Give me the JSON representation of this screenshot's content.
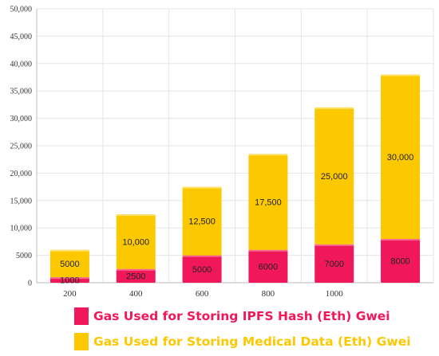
{
  "colors": {
    "ipfs": "#f0185a",
    "medical": "#fcc800",
    "grid": "#e5e5e5",
    "axis": "#bbbbbb"
  },
  "chart_data": {
    "type": "bar",
    "stacked": true,
    "categories": [
      "200",
      "400",
      "600",
      "800",
      "1000",
      ""
    ],
    "series": [
      {
        "name": "Gas Used for Storing IPFS Hash (Eth) Gwei",
        "color": "#f0185a",
        "values": [
          1000,
          2500,
          5000,
          6000,
          7000,
          8000
        ],
        "labels": [
          "1000",
          "2500",
          "5000",
          "6000",
          "7000",
          "8000"
        ]
      },
      {
        "name": "Gas Used for Storing Medical Data (Eth) Gwei",
        "color": "#fcc800",
        "values": [
          5000,
          10000,
          12500,
          17500,
          25000,
          30000
        ],
        "labels": [
          "5000",
          "10,000",
          "12,500",
          "17,500",
          "25,000",
          "30,000"
        ]
      }
    ],
    "y_ticks": [
      "0",
      "5000",
      "10,000",
      "15,000",
      "20,000",
      "25,000",
      "30,000",
      "35,000",
      "40,000",
      "45,000",
      "50,000"
    ],
    "ylim": [
      0,
      50000
    ],
    "grid": true,
    "legend_position": "bottom-left"
  }
}
